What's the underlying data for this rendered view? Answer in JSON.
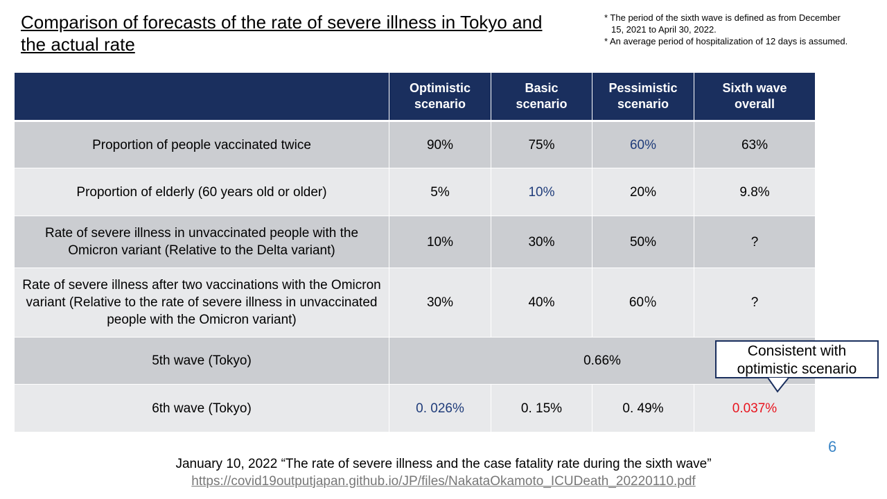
{
  "title": "Comparison of forecasts of the rate of severe illness in Tokyo and the actual rate",
  "notes": [
    "* The period of the sixth wave is defined as from December",
    "15, 2021 to April 30, 2022.",
    "* An average period of hospitalization of 12 days is assumed."
  ],
  "table": {
    "headers": [
      "",
      "Optimistic scenario",
      "Basic scenario",
      "Pessimistic scenario",
      "Sixth wave overall"
    ],
    "rows": [
      {
        "label": "Proportion of people vaccinated twice",
        "values": [
          "90%",
          "75%",
          "60%",
          "63%"
        ]
      },
      {
        "label": "Proportion of elderly (60 years old or older)",
        "values": [
          "5%",
          "10%",
          "20%",
          "9.8%"
        ]
      },
      {
        "label": "Rate of severe illness in unvaccinated people with the Omicron variant (Relative to the Delta variant)",
        "values": [
          "10%",
          "30%",
          "50%",
          "?"
        ]
      },
      {
        "label": "Rate of severe illness after two vaccinations with the Omicron variant (Relative to the rate of severe illness in unvaccinated people with the Omicron variant)",
        "values": [
          "30%",
          "40%",
          "60％",
          "?"
        ]
      },
      {
        "label": "5th wave (Tokyo)",
        "merged_value": "0.66%"
      },
      {
        "label": "6th wave (Tokyo)",
        "values": [
          "0. 026%",
          "0. 15%",
          "0. 49%",
          "0.037%"
        ]
      }
    ]
  },
  "callout": {
    "line1": "Consistent with",
    "line2": "optimistic scenario"
  },
  "page_number": "6",
  "footer": {
    "citation": "January 10, 2022 “The rate of severe illness and the case fatality rate during the sixth wave”",
    "link": "https://covid19outputjapan.github.io/JP/files/NakataOkamoto_ICUDeath_20220110.pdf"
  },
  "colors": {
    "header_bg": "#1a2f5e",
    "highlight_blue": "#1f3c7a",
    "highlight_red": "#e8141e",
    "row_dark": "#cbcdd1",
    "row_light": "#e8e9eb"
  }
}
